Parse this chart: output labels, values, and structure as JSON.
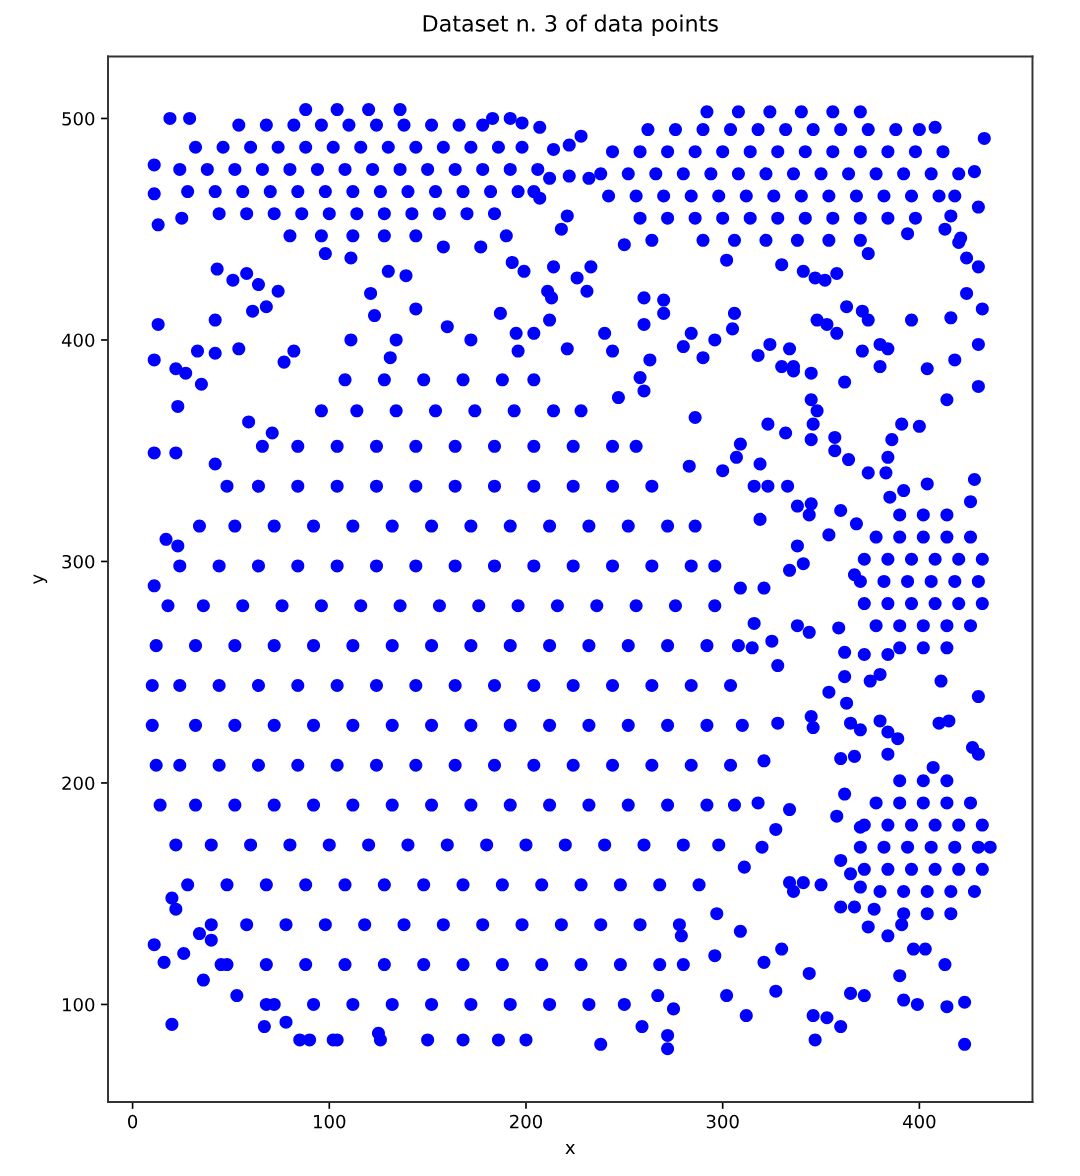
{
  "chart_data": {
    "type": "scatter",
    "title": "Dataset n. 3 of data points",
    "xlabel": "x",
    "ylabel": "y",
    "xlim": [
      -12.5,
      457.5
    ],
    "ylim": [
      56,
      528
    ],
    "xticks": [
      0,
      100,
      200,
      300,
      400
    ],
    "yticks": [
      100,
      200,
      300,
      400,
      500
    ],
    "marker": "circle",
    "series": [
      {
        "color": "#0000ff",
        "x": [
          90,
          104,
          126,
          150,
          168,
          186,
          200,
          72,
          92,
          112,
          132,
          152,
          172,
          192,
          212,
          232,
          250,
          48,
          68,
          88,
          108,
          128,
          148,
          168,
          188,
          208,
          228,
          248,
          268,
          40,
          58,
          78,
          98,
          118,
          138,
          158,
          178,
          198,
          218,
          238,
          258,
          278,
          28,
          48,
          68,
          88,
          108,
          128,
          148,
          168,
          188,
          208,
          228,
          248,
          268,
          288,
          22,
          40,
          60,
          80,
          100,
          120,
          140,
          160,
          180,
          200,
          220,
          240,
          260,
          280,
          298,
          14,
          32,
          52,
          72,
          92,
          112,
          132,
          152,
          172,
          192,
          212,
          232,
          252,
          272,
          292,
          306,
          12,
          24,
          44,
          64,
          84,
          104,
          124,
          144,
          164,
          184,
          204,
          224,
          244,
          264,
          284,
          304,
          10,
          32,
          52,
          72,
          92,
          112,
          132,
          152,
          172,
          192,
          212,
          232,
          252,
          272,
          292,
          310,
          10,
          24,
          44,
          64,
          84,
          104,
          124,
          144,
          164,
          184,
          204,
          224,
          244,
          264,
          284,
          304,
          12,
          32,
          52,
          72,
          92,
          112,
          132,
          152,
          172,
          192,
          212,
          232,
          252,
          272,
          292,
          308,
          18,
          36,
          56,
          76,
          96,
          116,
          136,
          156,
          176,
          196,
          216,
          236,
          256,
          276,
          296,
          24,
          44,
          64,
          84,
          104,
          124,
          144,
          164,
          184,
          204,
          224,
          244,
          264,
          284,
          296,
          34,
          52,
          72,
          92,
          112,
          132,
          152,
          172,
          192,
          212,
          232,
          252,
          272,
          286,
          48,
          64,
          84,
          104,
          124,
          144,
          164,
          184,
          204,
          224,
          244,
          264,
          66,
          84,
          104,
          124,
          144,
          164,
          184,
          204,
          224,
          244,
          256,
          96,
          114,
          134,
          154,
          174,
          194,
          214,
          228,
          108,
          128,
          148,
          168,
          188,
          204
        ],
        "values": [
          84,
          84,
          84,
          84,
          84,
          84,
          84,
          100,
          100,
          100,
          100,
          100,
          100,
          100,
          100,
          100,
          100,
          118,
          118,
          118,
          118,
          118,
          118,
          118,
          118,
          118,
          118,
          118,
          118,
          136,
          136,
          136,
          136,
          136,
          136,
          136,
          136,
          136,
          136,
          136,
          136,
          136,
          154,
          154,
          154,
          154,
          154,
          154,
          154,
          154,
          154,
          154,
          154,
          154,
          154,
          154,
          172,
          172,
          172,
          172,
          172,
          172,
          172,
          172,
          172,
          172,
          172,
          172,
          172,
          172,
          172,
          190,
          190,
          190,
          190,
          190,
          190,
          190,
          190,
          190,
          190,
          190,
          190,
          190,
          190,
          190,
          190,
          208,
          208,
          208,
          208,
          208,
          208,
          208,
          208,
          208,
          208,
          208,
          208,
          208,
          208,
          208,
          208,
          226,
          226,
          226,
          226,
          226,
          226,
          226,
          226,
          226,
          226,
          226,
          226,
          226,
          226,
          226,
          226,
          244,
          244,
          244,
          244,
          244,
          244,
          244,
          244,
          244,
          244,
          244,
          244,
          244,
          244,
          244,
          244,
          262,
          262,
          262,
          262,
          262,
          262,
          262,
          262,
          262,
          262,
          262,
          262,
          262,
          262,
          262,
          262,
          280,
          280,
          280,
          280,
          280,
          280,
          280,
          280,
          280,
          280,
          280,
          280,
          280,
          280,
          280,
          298,
          298,
          298,
          298,
          298,
          298,
          298,
          298,
          298,
          298,
          298,
          298,
          298,
          298,
          298,
          316,
          316,
          316,
          316,
          316,
          316,
          316,
          316,
          316,
          316,
          316,
          316,
          316,
          316,
          334,
          334,
          334,
          334,
          334,
          334,
          334,
          334,
          334,
          334,
          334,
          334,
          352,
          352,
          352,
          352,
          352,
          352,
          352,
          352,
          352,
          352,
          352,
          368,
          368,
          368,
          368,
          368,
          368,
          368,
          368,
          382,
          382,
          382,
          382,
          382,
          382
        ]
      },
      {
        "color": "#0000ff",
        "x": [
          80,
          96,
          112,
          128,
          144,
          44,
          58,
          72,
          86,
          100,
          114,
          128,
          142,
          156,
          170,
          184,
          28,
          42,
          56,
          70,
          84,
          98,
          112,
          126,
          140,
          154,
          168,
          182,
          196,
          204,
          24,
          38,
          52,
          66,
          80,
          94,
          108,
          122,
          136,
          150,
          164,
          178,
          192,
          206,
          32,
          46,
          60,
          74,
          88,
          102,
          116,
          130,
          144,
          158,
          172,
          186,
          198,
          54,
          68,
          82,
          96,
          110,
          124,
          138,
          152,
          166,
          178,
          88,
          104,
          120,
          136,
          212,
          222,
          232
        ],
        "values": [
          447,
          447,
          447,
          447,
          447,
          457,
          457,
          457,
          457,
          457,
          457,
          457,
          457,
          457,
          457,
          457,
          467,
          467,
          467,
          467,
          467,
          467,
          467,
          467,
          467,
          467,
          467,
          467,
          467,
          467,
          477,
          477,
          477,
          477,
          477,
          477,
          477,
          477,
          477,
          477,
          477,
          477,
          477,
          477,
          487,
          487,
          487,
          487,
          487,
          487,
          487,
          487,
          487,
          487,
          487,
          487,
          487,
          497,
          497,
          497,
          497,
          497,
          497,
          497,
          497,
          497,
          497,
          504,
          504,
          504,
          504,
          473,
          474,
          473
        ]
      },
      {
        "color": "#0000ff",
        "x": [
          290,
          306,
          322,
          338,
          354,
          370,
          258,
          272,
          286,
          300,
          314,
          328,
          342,
          356,
          370,
          384,
          398,
          242,
          256,
          270,
          284,
          298,
          312,
          326,
          340,
          354,
          368,
          382,
          396,
          410,
          418,
          238,
          252,
          266,
          280,
          294,
          308,
          322,
          336,
          350,
          364,
          378,
          392,
          406,
          420,
          244,
          258,
          272,
          286,
          300,
          314,
          328,
          342,
          356,
          370,
          384,
          398,
          412,
          262,
          276,
          290,
          304,
          318,
          332,
          346,
          360,
          374,
          388,
          400,
          292,
          308,
          324,
          340,
          356,
          370
        ],
        "values": [
          445,
          445,
          445,
          445,
          445,
          445,
          455,
          455,
          455,
          455,
          455,
          455,
          455,
          455,
          455,
          455,
          455,
          465,
          465,
          465,
          465,
          465,
          465,
          465,
          465,
          465,
          465,
          465,
          465,
          465,
          465,
          475,
          475,
          475,
          475,
          475,
          475,
          475,
          475,
          475,
          475,
          475,
          475,
          475,
          475,
          485,
          485,
          485,
          485,
          485,
          485,
          485,
          485,
          485,
          485,
          485,
          485,
          485,
          495,
          495,
          495,
          495,
          495,
          495,
          495,
          495,
          495,
          495,
          495,
          503,
          503,
          503,
          503,
          503,
          503
        ]
      },
      {
        "color": "#0000ff",
        "x": [
          390,
          402,
          414,
          378,
          390,
          402,
          414,
          426,
          372,
          384,
          396,
          408,
          420,
          432,
          370,
          382,
          394,
          406,
          418,
          430,
          372,
          384,
          396,
          408,
          420,
          432,
          378,
          390,
          402,
          414,
          426,
          390,
          402,
          414
        ],
        "values": [
          261,
          261,
          261,
          271,
          271,
          271,
          271,
          271,
          281,
          281,
          281,
          281,
          281,
          281,
          291,
          291,
          291,
          291,
          291,
          291,
          301,
          301,
          301,
          301,
          301,
          301,
          311,
          311,
          311,
          311,
          311,
          321,
          321,
          321
        ]
      },
      {
        "color": "#0000ff",
        "x": [
          392,
          404,
          416,
          380,
          392,
          404,
          416,
          428,
          372,
          384,
          396,
          408,
          420,
          432,
          370,
          382,
          394,
          406,
          418,
          430,
          436,
          372,
          384,
          396,
          408,
          420,
          432,
          378,
          390,
          402,
          414,
          426,
          390,
          402,
          414,
          407
        ],
        "values": [
          141,
          141,
          141,
          151,
          151,
          151,
          151,
          151,
          161,
          161,
          161,
          161,
          161,
          161,
          171,
          171,
          171,
          171,
          171,
          171,
          171,
          181,
          181,
          181,
          181,
          181,
          181,
          191,
          191,
          191,
          191,
          191,
          201,
          201,
          201,
          207
        ]
      },
      {
        "color": "#0000ff",
        "x": [
          19,
          29,
          11,
          11,
          13,
          25,
          43,
          51,
          58,
          64,
          74,
          61,
          68,
          13,
          42,
          33,
          42,
          54,
          11,
          22,
          27,
          35,
          23,
          59,
          71,
          11,
          22,
          42,
          82,
          77,
          98,
          111,
          121,
          130,
          139,
          144,
          123,
          111,
          134,
          131,
          160,
          172,
          190,
          177,
          158,
          193,
          199,
          187,
          195,
          204,
          196,
          183,
          192,
          198,
          207,
          214,
          222,
          228,
          207,
          221,
          218,
          250,
          264,
          302,
          330,
          341,
          347,
          352,
          358,
          374,
          394,
          413,
          421,
          408,
          433,
          428,
          430,
          416,
          420,
          424,
          430,
          424,
          416,
          432,
          396,
          430,
          430,
          414,
          404,
          418,
          380,
          384,
          371,
          374,
          363,
          353,
          358,
          348,
          371,
          380,
          345,
          336,
          330,
          362,
          345,
          348,
          346,
          345,
          323,
          332,
          357,
          357,
          364,
          384,
          386,
          391,
          400,
          374,
          383,
          404,
          428,
          426,
          392,
          385,
          309,
          307,
          319,
          316,
          323,
          333,
          338,
          345,
          344,
          319,
          338,
          354,
          360,
          368,
          286,
          300,
          283,
          258,
          260,
          247,
          263,
          240,
          244,
          260,
          270,
          270,
          260,
          280,
          284,
          290,
          296,
          306,
          305,
          318,
          324,
          334,
          336,
          221,
          213,
          212,
          214,
          211,
          226,
          231,
          233,
          17,
          23
        ],
        "values": [
          500,
          500,
          479,
          466,
          452,
          455,
          432,
          427,
          430,
          425,
          422,
          413,
          415,
          407,
          409,
          395,
          394,
          396,
          391,
          387,
          385,
          380,
          370,
          363,
          358,
          349,
          349,
          344,
          395,
          390,
          439,
          437,
          421,
          431,
          429,
          414,
          411,
          400,
          400,
          392,
          406,
          400,
          447,
          442,
          442,
          435,
          431,
          412,
          403,
          403,
          395,
          500,
          500,
          498,
          496,
          486,
          488,
          492,
          464,
          456,
          450,
          443,
          445,
          436,
          434,
          431,
          428,
          427,
          430,
          439,
          448,
          450,
          446,
          496,
          491,
          476,
          460,
          456,
          444,
          437,
          433,
          421,
          410,
          414,
          409,
          398,
          379,
          373,
          387,
          391,
          398,
          396,
          413,
          409,
          415,
          407,
          403,
          409,
          395,
          388,
          385,
          386,
          388,
          381,
          373,
          368,
          362,
          355,
          362,
          358,
          356,
          350,
          346,
          347,
          355,
          362,
          361,
          340,
          340,
          335,
          337,
          327,
          332,
          329,
          353,
          347,
          344,
          334,
          334,
          334,
          325,
          326,
          321,
          319,
          307,
          312,
          323,
          317,
          365,
          341,
          343,
          383,
          377,
          374,
          391,
          403,
          395,
          407,
          412,
          418,
          419,
          397,
          403,
          392,
          400,
          412,
          405,
          393,
          398,
          396,
          388,
          396,
          419,
          409,
          433,
          422,
          428,
          422,
          433,
          310,
          307
        ]
      },
      {
        "color": "#0000ff",
        "x": [
          341,
          334,
          367,
          11,
          309,
          321,
          316,
          325,
          328,
          315,
          338,
          344,
          359,
          362,
          372,
          384,
          362,
          363,
          375,
          380,
          411,
          430,
          354,
          345,
          346,
          328,
          365,
          370,
          380,
          384,
          389,
          360,
          367,
          384,
          410,
          415,
          427,
          430,
          321,
          318,
          334,
          327,
          320,
          362,
          358,
          370,
          311,
          334,
          341,
          350,
          336,
          360,
          365,
          370,
          297,
          279,
          360,
          367,
          377,
          374,
          384,
          391,
          397,
          403,
          413,
          390,
          392,
          399,
          414,
          423,
          423,
          296,
          280,
          321,
          327,
          330,
          309,
          344,
          365,
          372,
          302,
          312,
          346,
          353,
          347,
          360,
          267,
          275,
          259,
          272,
          272,
          238,
          20,
          11,
          20,
          22,
          16,
          26,
          34,
          40,
          36,
          45,
          53,
          68,
          67,
          78,
          85,
          102,
          125
        ],
        "values": [
          299,
          296,
          294,
          289,
          288,
          288,
          272,
          264,
          253,
          261,
          271,
          268,
          270,
          259,
          258,
          258,
          248,
          236,
          246,
          249,
          246,
          239,
          241,
          230,
          225,
          227,
          227,
          224,
          228,
          223,
          220,
          211,
          212,
          213,
          227,
          228,
          216,
          213,
          210,
          191,
          188,
          179,
          171,
          195,
          185,
          180,
          162,
          155,
          155,
          154,
          151,
          165,
          159,
          153,
          141,
          131,
          144,
          144,
          143,
          135,
          131,
          136,
          125,
          125,
          118,
          113,
          102,
          100,
          99,
          101,
          82,
          122,
          118,
          119,
          106,
          125,
          133,
          114,
          105,
          104,
          104,
          95,
          95,
          94,
          84,
          90,
          104,
          98,
          90,
          86,
          80,
          82,
          91,
          127,
          148,
          143,
          119,
          123,
          132,
          129,
          111,
          118,
          104,
          100,
          90,
          92,
          84,
          84,
          87
        ]
      }
    ]
  }
}
